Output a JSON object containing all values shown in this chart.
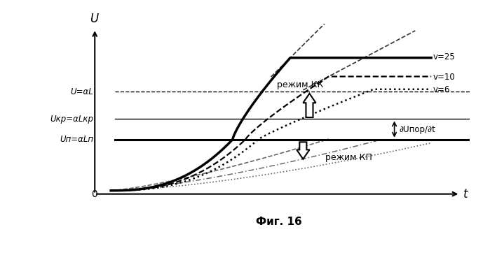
{
  "title": "Фиг. 16",
  "xlabel": "t",
  "ylabel": "U",
  "background_color": "#ffffff",
  "U_al": 0.58,
  "U_kr": 0.42,
  "U_p": 0.3,
  "U_v25": 0.78,
  "U_v10": 0.67,
  "U_v6": 0.595,
  "figsize": [
    6.99,
    3.65
  ],
  "dpi": 100,
  "label_v25": "v=25",
  "label_v10": "v=10",
  "label_v6": "v=6",
  "label_UaL": "U=αL",
  "label_Ukr": "Uкр=αLкр",
  "label_Up": "Uп=αLп",
  "label_rezimKK": "режим КК",
  "label_rezimKP": "режим КП",
  "label_dU": "∂Uпор/∂t"
}
